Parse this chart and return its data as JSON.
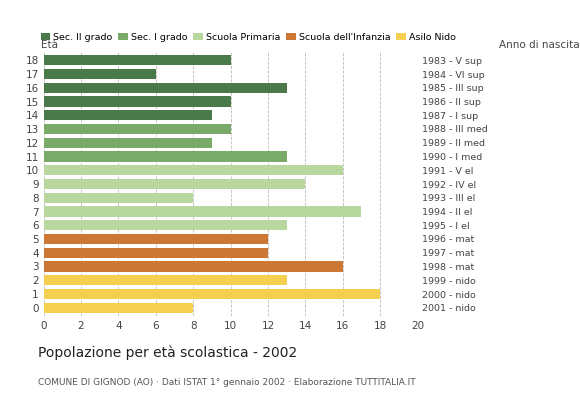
{
  "ages": [
    18,
    17,
    16,
    15,
    14,
    13,
    12,
    11,
    10,
    9,
    8,
    7,
    6,
    5,
    4,
    3,
    2,
    1,
    0
  ],
  "anno_nascita": [
    "1983 - V sup",
    "1984 - VI sup",
    "1985 - III sup",
    "1986 - II sup",
    "1987 - I sup",
    "1988 - III med",
    "1989 - II med",
    "1990 - I med",
    "1991 - V el",
    "1992 - IV el",
    "1993 - III el",
    "1994 - II el",
    "1995 - I el",
    "1996 - mat",
    "1997 - mat",
    "1998 - mat",
    "1999 - nido",
    "2000 - nido",
    "2001 - nido"
  ],
  "values": [
    10,
    6,
    13,
    10,
    9,
    10,
    9,
    13,
    16,
    14,
    8,
    17,
    13,
    12,
    12,
    16,
    13,
    18,
    8
  ],
  "colors": [
    "#4a7a4a",
    "#4a7a4a",
    "#4a7a4a",
    "#4a7a4a",
    "#4a7a4a",
    "#7aaa6a",
    "#7aaa6a",
    "#7aaa6a",
    "#b8d8a0",
    "#b8d8a0",
    "#b8d8a0",
    "#b8d8a0",
    "#b8d8a0",
    "#cc7733",
    "#cc7733",
    "#cc7733",
    "#f5d050",
    "#f5d050",
    "#f5d050"
  ],
  "legend_labels": [
    "Sec. II grado",
    "Sec. I grado",
    "Scuola Primaria",
    "Scuola dell'Infanzia",
    "Asilo Nido"
  ],
  "legend_colors": [
    "#4a7a4a",
    "#7aaa6a",
    "#b8d8a0",
    "#cc7733",
    "#f5d050"
  ],
  "title": "Popolazione per età scolastica - 2002",
  "subtitle": "COMUNE DI GIGNOD (AO) · Dati ISTAT 1° gennaio 2002 · Elaborazione TUTTITALIA.IT",
  "xlabel_left": "Età",
  "xlabel_right": "Anno di nascita",
  "xlim": [
    0,
    20
  ],
  "xticks": [
    0,
    2,
    4,
    6,
    8,
    10,
    12,
    14,
    16,
    18,
    20
  ],
  "bar_height": 0.75,
  "background_color": "#ffffff",
  "grid_color": "#bbbbbb"
}
